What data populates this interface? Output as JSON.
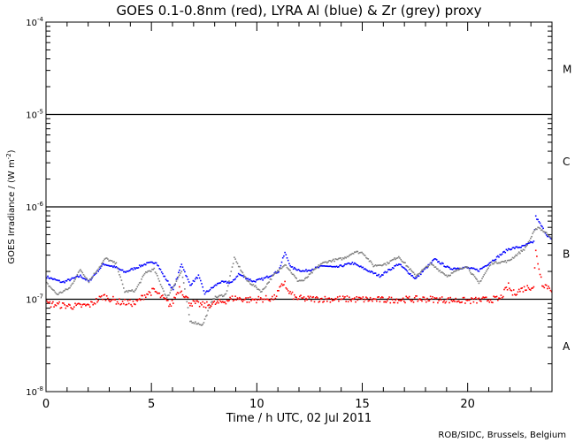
{
  "chart_data": {
    "type": "scatter",
    "title": "GOES 0.1-0.8nm (red), LYRA Al (blue) & Zr (grey) proxy",
    "xlabel": "Time / h UTC, 02 Jul 2011",
    "ylabel": "GOES Irradiance / (W m",
    "ylabel_sup": "-2",
    "ylabel_end": ")",
    "credit": "ROB/SIDC, Brussels, Belgium",
    "xlim": [
      0,
      24
    ],
    "ylim_log10": [
      -8,
      -4
    ],
    "y_scale": "log",
    "x_ticks": [
      0,
      5,
      10,
      15,
      20
    ],
    "x_tick_labels": [
      "0",
      "5",
      "10",
      "15",
      "20"
    ],
    "y_ticks_log10": [
      -4,
      -5,
      -6,
      -7,
      -8
    ],
    "y_tick_base": "10",
    "y_tick_exps": [
      "-4",
      "-5",
      "-6",
      "-7",
      "-8"
    ],
    "flare_class_lines_log10": [
      -5,
      -6,
      -7
    ],
    "flare_classes": [
      {
        "label": "M",
        "log10_center": -4.5
      },
      {
        "label": "C",
        "log10_center": -5.5
      },
      {
        "label": "B",
        "log10_center": -6.5
      },
      {
        "label": "A",
        "log10_center": -7.5
      }
    ],
    "series": [
      {
        "name": "LYRA Al proxy",
        "color": "#0000ff",
        "x": [
          0,
          0.75,
          1.6,
          2.0,
          2.7,
          3.3,
          3.7,
          4.7,
          5.2,
          5.5,
          6.0,
          6.4,
          6.8,
          7.2,
          7.5,
          8.2,
          8.8,
          9.1,
          9.8,
          10.3,
          11.0,
          11.3,
          11.6,
          12.2,
          13.2,
          13.7,
          14.5,
          15.4,
          15.8,
          16.7,
          17.5,
          18.4,
          19.1,
          19.9,
          20.5,
          21.3,
          21.9,
          22.6,
          23.1,
          23.2,
          23.7,
          24
        ],
        "log10_y": [
          -6.75,
          -6.81,
          -6.74,
          -6.8,
          -6.61,
          -6.65,
          -6.7,
          -6.61,
          -6.59,
          -6.72,
          -6.89,
          -6.61,
          -6.84,
          -6.74,
          -6.93,
          -6.81,
          -6.81,
          -6.72,
          -6.8,
          -6.77,
          -6.69,
          -6.49,
          -6.65,
          -6.69,
          -6.63,
          -6.65,
          -6.6,
          -6.7,
          -6.74,
          -6.61,
          -6.77,
          -6.56,
          -6.66,
          -6.65,
          -6.68,
          -6.55,
          -6.45,
          -6.42,
          -6.37,
          -6.1,
          -6.29,
          -6.36
        ]
      },
      {
        "name": "LYRA Zr proxy",
        "color": "#808080",
        "x": [
          0,
          0.5,
          1.1,
          1.6,
          2.0,
          2.8,
          3.3,
          3.7,
          4.2,
          4.7,
          5.1,
          5.7,
          6.4,
          6.8,
          7.4,
          7.9,
          8.5,
          8.9,
          9.5,
          10.2,
          10.7,
          11.3,
          11.9,
          12.2,
          13.0,
          13.4,
          14.1,
          14.6,
          15.0,
          15.5,
          16.1,
          16.7,
          17.5,
          18.2,
          19.0,
          19.9,
          20.5,
          21.1,
          21.9,
          22.7,
          23.1,
          23.3,
          24
        ],
        "log10_y": [
          -6.82,
          -6.94,
          -6.87,
          -6.67,
          -6.8,
          -6.55,
          -6.61,
          -6.91,
          -6.9,
          -6.7,
          -6.67,
          -6.98,
          -6.69,
          -7.23,
          -7.27,
          -6.98,
          -6.94,
          -6.55,
          -6.79,
          -6.91,
          -6.75,
          -6.61,
          -6.79,
          -6.79,
          -6.61,
          -6.58,
          -6.55,
          -6.48,
          -6.49,
          -6.63,
          -6.61,
          -6.53,
          -6.74,
          -6.61,
          -6.74,
          -6.63,
          -6.82,
          -6.6,
          -6.58,
          -6.44,
          -6.27,
          -6.21,
          -6.33
        ]
      },
      {
        "name": "GOES 0.1-0.8nm",
        "color": "#ff0000",
        "x": [
          0,
          0.8,
          1.3,
          2.0,
          2.7,
          3.4,
          4.2,
          4.7,
          5.1,
          5.5,
          5.9,
          6.3,
          6.8,
          7.5,
          8.2,
          8.9,
          9.6,
          10.3,
          10.8,
          11.3,
          11.4,
          11.8,
          12.3,
          14,
          16,
          18,
          20,
          21.5,
          21.9,
          22.1,
          22.6,
          23.1,
          23.2,
          23.5,
          24
        ],
        "log10_y": [
          -7.04,
          -7.06,
          -7.07,
          -7.06,
          -6.96,
          -7.02,
          -7.04,
          -6.94,
          -6.9,
          -6.98,
          -7.06,
          -6.87,
          -7.03,
          -7.06,
          -7.03,
          -6.98,
          -7.0,
          -6.99,
          -6.98,
          -6.8,
          -6.9,
          -6.98,
          -6.99,
          -6.99,
          -7.0,
          -6.99,
          -7.01,
          -6.99,
          -6.85,
          -6.93,
          -6.88,
          -6.85,
          -6.48,
          -6.82,
          -6.89
        ]
      }
    ]
  }
}
